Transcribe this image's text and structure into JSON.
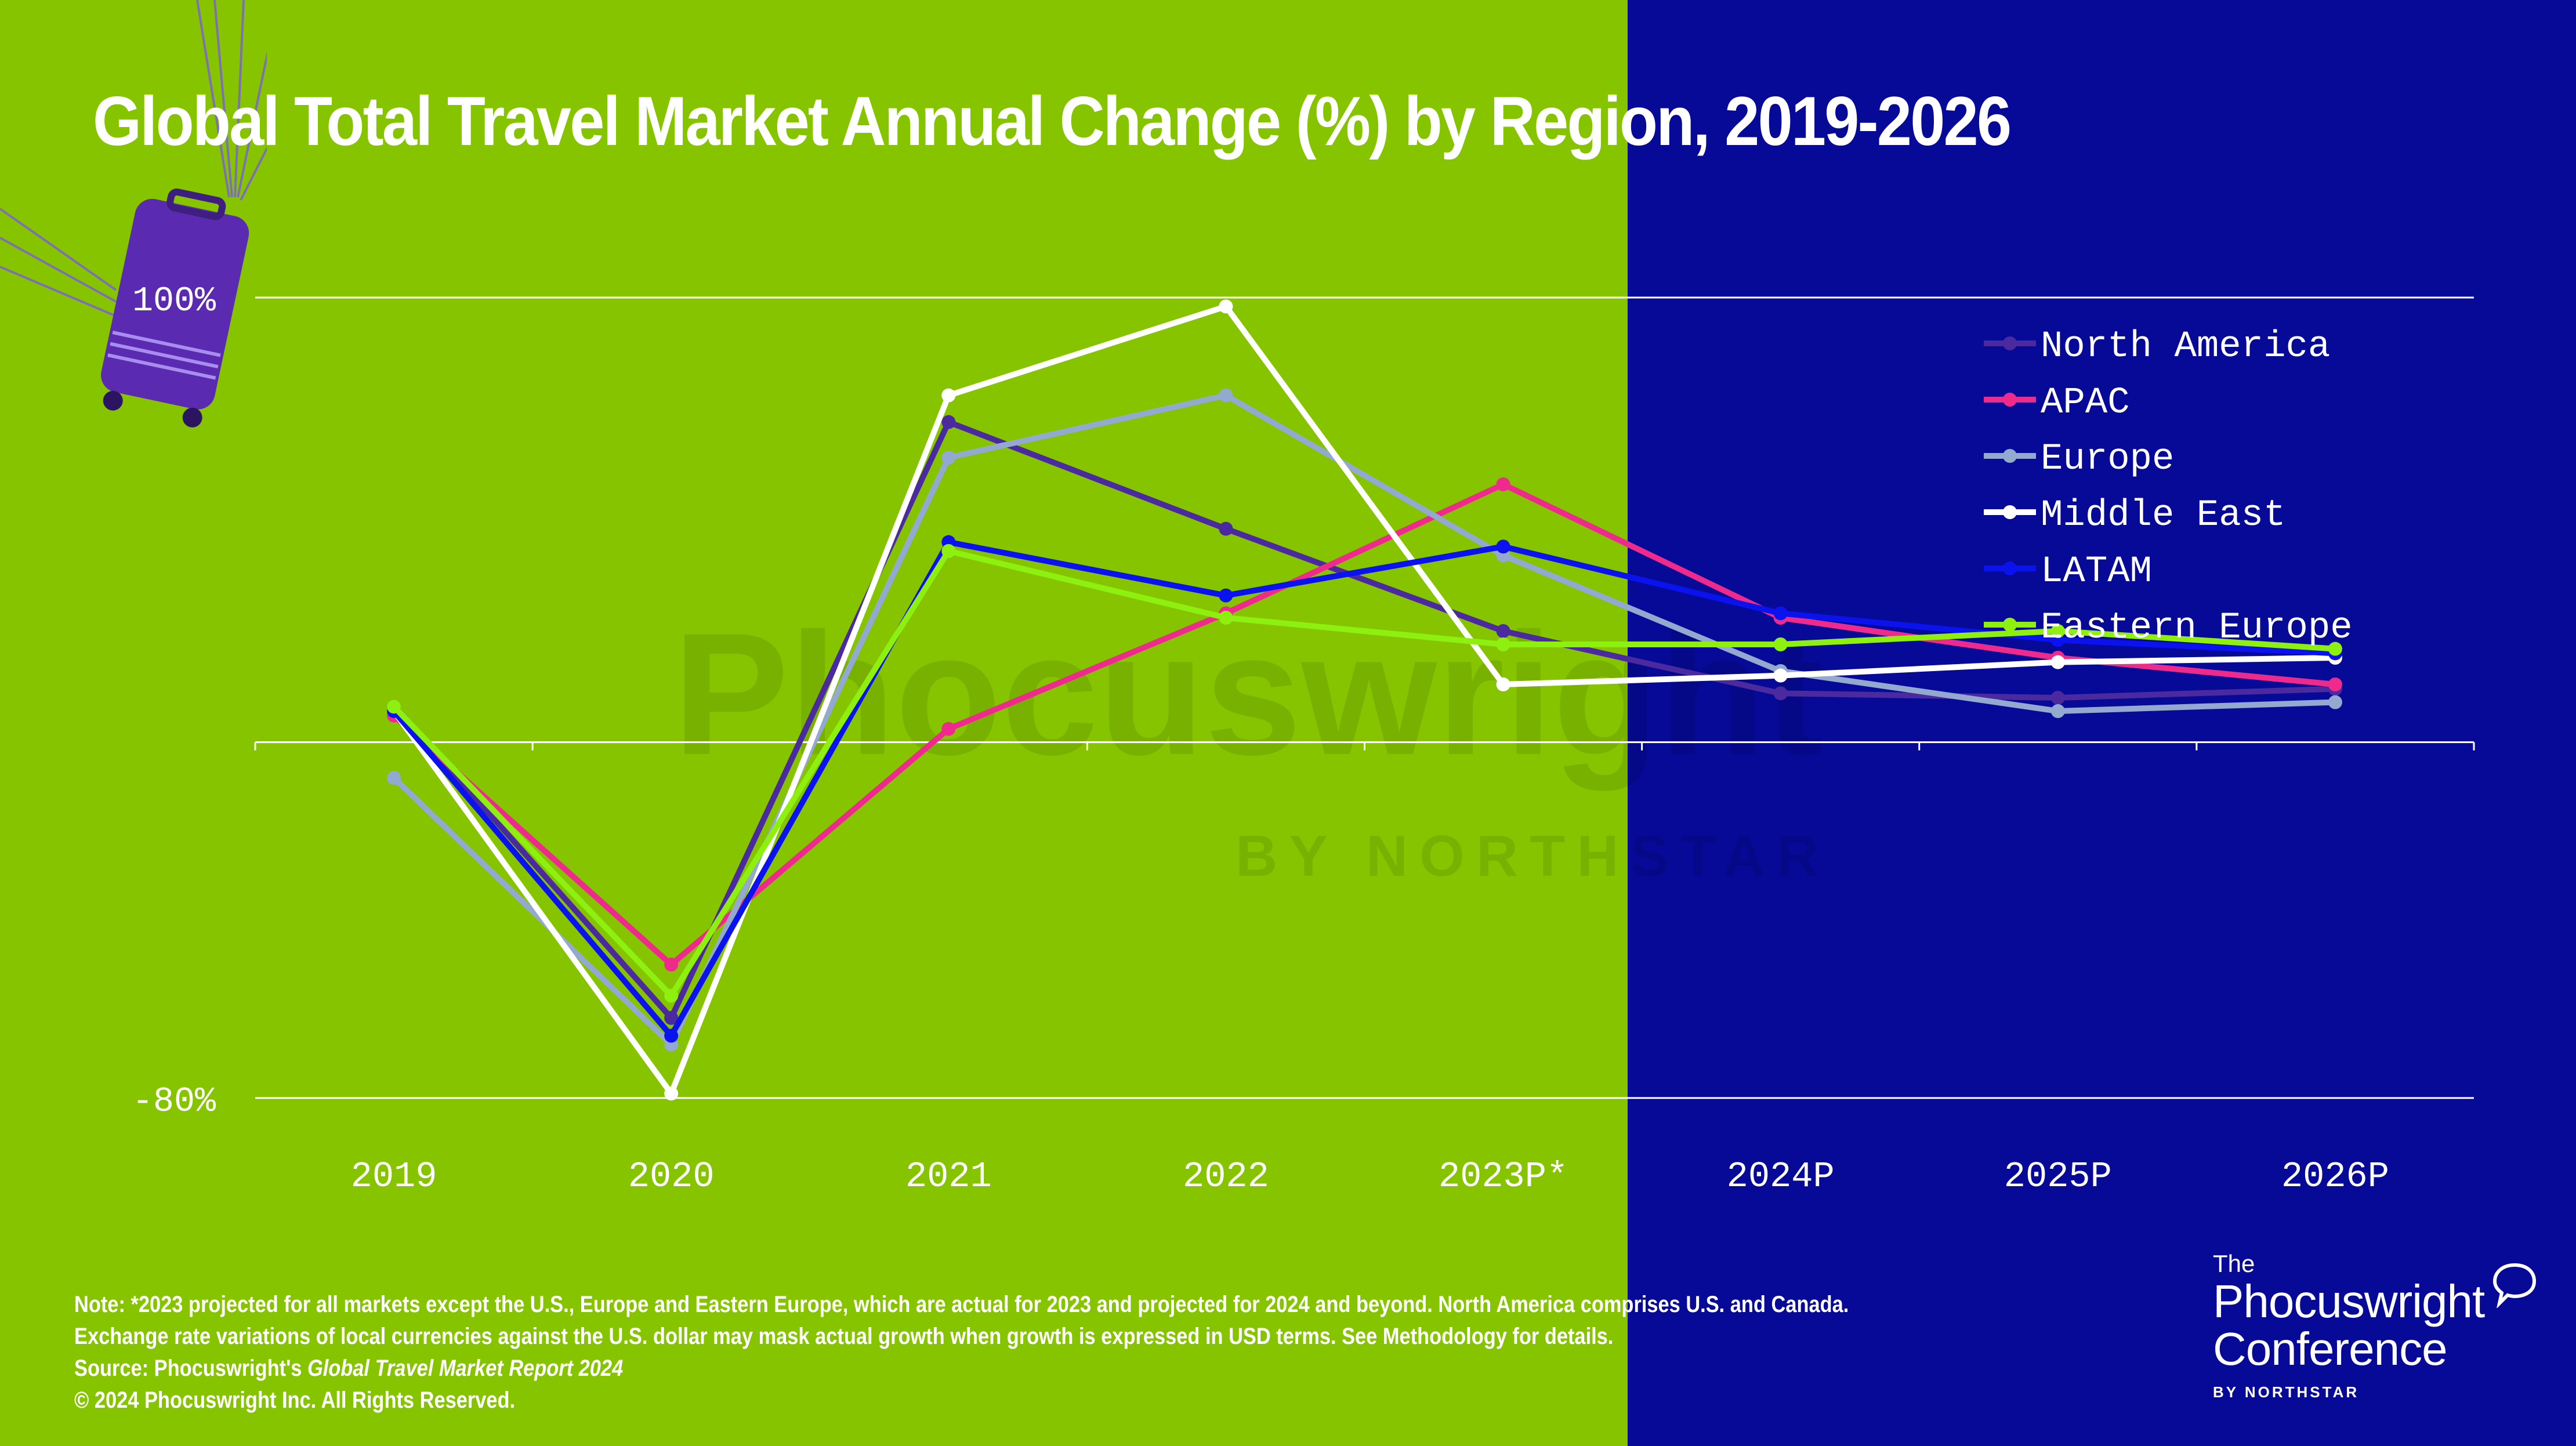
{
  "title": "Global Total Travel Market Annual Change (%) by Region, 2019-2026",
  "colors": {
    "green_panel": "#86C400",
    "blue_panel": "#070A96"
  },
  "watermark": {
    "main": "Phocuswright",
    "sub": "BY NORTHSTAR"
  },
  "notes": {
    "line1": "Note: *2023 projected for all markets except the U.S., Europe and Eastern Europe, which are actual for 2023 and projected for 2024 and beyond. North America comprises U.S. and Canada.",
    "line2": "Exchange rate variations of local currencies against the U.S. dollar may mask actual growth when growth is expressed in USD terms. See Methodology for details.",
    "source_prefix": "Source: Phocuswright's ",
    "source_title": "Global Travel Market Report 2024",
    "copyright": "© 2024 Phocuswright Inc. All Rights Reserved."
  },
  "logo": {
    "the": "The",
    "line1": "Phocuswright",
    "line2": "Conference",
    "by": "BY NORTHSTAR"
  },
  "chart_data": {
    "type": "line",
    "categories": [
      "2019",
      "2020",
      "2021",
      "2022",
      "2023P*",
      "2024P",
      "2025P",
      "2026P"
    ],
    "y_tick_labels": [
      "100%",
      "-80%"
    ],
    "ylim": [
      -80,
      100
    ],
    "grid": true,
    "legend_position": "top-right",
    "series": [
      {
        "name": "North America",
        "color": "#4B2AA0",
        "values": [
          8,
          -62,
          72,
          48,
          25,
          11,
          10,
          12
        ]
      },
      {
        "name": "APAC",
        "color": "#EE2B8C",
        "values": [
          6,
          -50,
          3,
          29,
          58,
          28,
          19,
          13
        ]
      },
      {
        "name": "Europe",
        "color": "#93A9CF",
        "values": [
          -8,
          -68,
          64,
          78,
          42,
          16,
          7,
          9
        ]
      },
      {
        "name": "Middle East",
        "color": "#FFFFFF",
        "values": [
          7,
          -79,
          78,
          98,
          13,
          15,
          18,
          19
        ]
      },
      {
        "name": "LATAM",
        "color": "#0A12EE",
        "values": [
          7,
          -66,
          45,
          33,
          44,
          29,
          23,
          20
        ]
      },
      {
        "name": "Eastern Europe",
        "color": "#8EF00F",
        "values": [
          8,
          -57,
          43,
          28,
          22,
          22,
          25,
          21
        ]
      }
    ]
  }
}
